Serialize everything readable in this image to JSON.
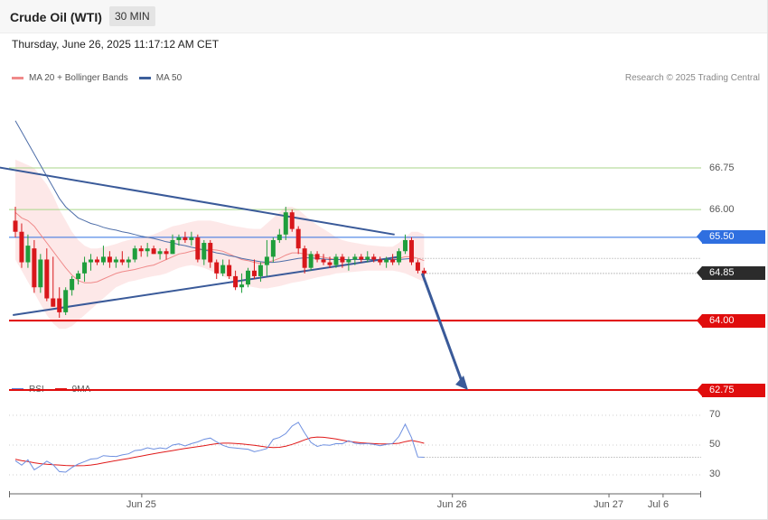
{
  "header": {
    "instrument": "Crude Oil (WTI)",
    "timeframe": "30 MIN"
  },
  "datetime": "Thursday, June 26, 2025 11:17:12 AM CET",
  "credit": "Research © 2025 Trading Central",
  "legend_main": [
    {
      "label": "MA 20 + Bollinger Bands",
      "color": "#f08a8a"
    },
    {
      "label": "MA 50",
      "color": "#3d5f9b"
    }
  ],
  "legend_rsi": [
    {
      "label": "RSI",
      "color": "#5b82d6"
    },
    {
      "label": "9MA",
      "color": "#e01919"
    }
  ],
  "colors": {
    "up": "#1f9e3c",
    "down": "#d8171b",
    "resistance": "#2f6fe0",
    "support": "#e00d0d",
    "trend": "#3a5a99",
    "last": "#2b2b2b",
    "green_level": "#a9d68a"
  },
  "chart_data": [
    {
      "type": "candlestick",
      "title": "Crude Oil (WTI)",
      "timeframe": "30 MIN",
      "x_ticks": [
        "Jun 25",
        "Jun 26",
        "Jun 27",
        "Jul 6"
      ],
      "ylim": [
        62.4,
        68.2
      ],
      "levels": [
        {
          "label": "66.75",
          "value": 66.75,
          "style": "green"
        },
        {
          "label": "66.00",
          "value": 66.0,
          "style": "green"
        },
        {
          "label": "65.50",
          "value": 65.5,
          "style": "resistance"
        },
        {
          "label": "64.85",
          "value": 64.85,
          "style": "last"
        },
        {
          "label": "64.00",
          "value": 64.0,
          "style": "support"
        },
        {
          "label": "62.75",
          "value": 62.75,
          "style": "support"
        }
      ],
      "ohlc": [
        [
          65.8,
          66.05,
          65.5,
          65.6
        ],
        [
          65.6,
          65.75,
          64.95,
          65.05
        ],
        [
          65.05,
          65.55,
          64.95,
          65.35
        ],
        [
          65.3,
          65.45,
          64.5,
          64.6
        ],
        [
          64.6,
          65.2,
          64.5,
          65.1
        ],
        [
          65.1,
          65.3,
          64.35,
          64.4
        ],
        [
          64.4,
          65.15,
          64.25,
          64.25
        ],
        [
          64.4,
          64.6,
          64.05,
          64.15
        ],
        [
          64.15,
          64.6,
          64.1,
          64.55
        ],
        [
          64.55,
          64.8,
          64.45,
          64.75
        ],
        [
          64.75,
          64.9,
          64.65,
          64.85
        ],
        [
          64.85,
          65.15,
          64.7,
          65.05
        ],
        [
          65.05,
          65.2,
          64.9,
          65.1
        ],
        [
          65.1,
          65.15,
          65.0,
          65.05
        ],
        [
          65.05,
          65.35,
          65.0,
          65.15
        ],
        [
          65.15,
          65.25,
          64.95,
          65.05
        ],
        [
          65.05,
          65.15,
          64.95,
          65.1
        ],
        [
          65.1,
          65.25,
          65.0,
          65.05
        ],
        [
          65.05,
          65.15,
          64.95,
          65.1
        ],
        [
          65.1,
          65.35,
          65.05,
          65.3
        ],
        [
          65.3,
          65.35,
          65.15,
          65.25
        ],
        [
          65.25,
          65.4,
          65.15,
          65.3
        ],
        [
          65.3,
          65.35,
          65.2,
          65.2
        ],
        [
          65.2,
          65.3,
          65.1,
          65.25
        ],
        [
          65.25,
          65.3,
          65.1,
          65.2
        ],
        [
          65.2,
          65.55,
          65.2,
          65.45
        ],
        [
          65.45,
          65.55,
          65.35,
          65.5
        ],
        [
          65.5,
          65.6,
          65.4,
          65.45
        ],
        [
          65.45,
          65.6,
          65.35,
          65.5
        ],
        [
          65.5,
          65.55,
          65.05,
          65.1
        ],
        [
          65.1,
          65.45,
          65.0,
          65.4
        ],
        [
          65.4,
          65.45,
          64.95,
          65.05
        ],
        [
          65.05,
          65.1,
          64.75,
          64.85
        ],
        [
          64.85,
          65.1,
          64.8,
          65.0
        ],
        [
          65.0,
          65.1,
          64.75,
          64.8
        ],
        [
          64.8,
          64.9,
          64.55,
          64.6
        ],
        [
          64.6,
          64.85,
          64.5,
          64.65
        ],
        [
          64.65,
          64.95,
          64.6,
          64.9
        ],
        [
          64.9,
          65.1,
          64.75,
          64.8
        ],
        [
          64.8,
          65.05,
          64.7,
          65.0
        ],
        [
          65.0,
          65.45,
          64.8,
          65.15
        ],
        [
          65.15,
          65.5,
          65.05,
          65.45
        ],
        [
          65.45,
          65.65,
          65.4,
          65.55
        ],
        [
          65.55,
          66.05,
          65.45,
          65.95
        ],
        [
          65.95,
          66.0,
          65.6,
          65.65
        ],
        [
          65.65,
          65.7,
          65.2,
          65.3
        ],
        [
          65.3,
          65.35,
          64.85,
          64.95
        ],
        [
          64.95,
          65.25,
          64.9,
          65.2
        ],
        [
          65.2,
          65.25,
          65.05,
          65.1
        ],
        [
          65.1,
          65.2,
          65.0,
          65.05
        ],
        [
          65.05,
          65.15,
          64.95,
          65.0
        ],
        [
          65.0,
          65.2,
          64.95,
          65.15
        ],
        [
          65.15,
          65.2,
          64.95,
          65.05
        ],
        [
          65.05,
          65.15,
          64.9,
          65.1
        ],
        [
          65.1,
          65.2,
          65.0,
          65.15
        ],
        [
          65.15,
          65.2,
          65.05,
          65.1
        ],
        [
          65.1,
          65.25,
          65.05,
          65.15
        ],
        [
          65.15,
          65.2,
          65.05,
          65.1
        ],
        [
          65.1,
          65.15,
          65.0,
          65.05
        ],
        [
          65.05,
          65.15,
          64.95,
          65.1
        ],
        [
          65.1,
          65.2,
          65.0,
          65.05
        ],
        [
          65.05,
          65.3,
          65.0,
          65.25
        ],
        [
          65.25,
          65.55,
          65.2,
          65.45
        ],
        [
          65.45,
          65.5,
          65.0,
          65.05
        ],
        [
          65.05,
          65.1,
          64.85,
          64.9
        ],
        [
          64.9,
          64.95,
          64.8,
          64.85
        ]
      ],
      "ma50": [
        67.6,
        67.4,
        67.2,
        67.0,
        66.8,
        66.6,
        66.4,
        66.2,
        66.05,
        65.95,
        65.85,
        65.8,
        65.75,
        65.72,
        65.68,
        65.65,
        65.63,
        65.6,
        65.58,
        65.55,
        65.52,
        65.5,
        65.48,
        65.45,
        65.42,
        65.4,
        65.37,
        65.35,
        65.32,
        65.3,
        65.27,
        65.25,
        65.22,
        65.2,
        65.17,
        65.15,
        65.12,
        65.1,
        65.08,
        65.06,
        65.05,
        65.05,
        65.06,
        65.08,
        65.1,
        65.12,
        65.13,
        65.13,
        65.12,
        65.11,
        65.1,
        65.1,
        65.1,
        65.1,
        65.1,
        65.1,
        65.1,
        65.1,
        65.1,
        65.1,
        65.1,
        65.1,
        65.11,
        65.12
      ],
      "ma20": [
        65.95,
        65.85,
        65.8,
        65.7,
        65.55,
        65.4,
        65.25,
        65.1,
        64.95,
        64.82,
        64.72,
        64.68,
        64.68,
        64.7,
        64.75,
        64.8,
        64.85,
        64.88,
        64.9,
        64.92,
        64.95,
        64.98,
        65.0,
        65.05,
        65.1,
        65.15,
        65.2,
        65.22,
        65.25,
        65.27,
        65.28,
        65.28,
        65.27,
        65.25,
        65.2,
        65.15,
        65.1,
        65.08,
        65.05,
        65.03,
        65.05,
        65.08,
        65.12,
        65.18,
        65.22,
        65.22,
        65.2,
        65.18,
        65.16,
        65.14,
        65.12,
        65.1,
        65.1,
        65.1,
        65.1,
        65.1,
        65.1,
        65.1,
        65.1,
        65.1,
        65.1,
        65.12,
        65.15,
        65.15,
        65.12,
        65.08
      ],
      "bb_upper": [
        66.9,
        66.85,
        66.8,
        66.75,
        66.6,
        66.45,
        66.25,
        66.0,
        65.8,
        65.6,
        65.45,
        65.35,
        65.3,
        65.3,
        65.32,
        65.35,
        65.38,
        65.42,
        65.45,
        65.48,
        65.5,
        65.52,
        65.55,
        65.6,
        65.65,
        65.7,
        65.72,
        65.75,
        65.78,
        65.8,
        65.8,
        65.8,
        65.78,
        65.75,
        65.72,
        65.7,
        65.68,
        65.66,
        65.65,
        65.65,
        65.75,
        65.85,
        65.95,
        66.05,
        66.05,
        66.0,
        65.9,
        65.8,
        65.72,
        65.65,
        65.58,
        65.5,
        65.45,
        65.42,
        65.4,
        65.38,
        65.36,
        65.35,
        65.34,
        65.33,
        65.33,
        65.4,
        65.5,
        65.6,
        65.6,
        65.55
      ],
      "bb_lower": [
        65.1,
        64.9,
        64.7,
        64.5,
        64.3,
        64.1,
        63.95,
        63.85,
        63.85,
        63.9,
        64.0,
        64.1,
        64.2,
        64.3,
        64.4,
        64.5,
        64.6,
        64.65,
        64.7,
        64.72,
        64.75,
        64.78,
        64.8,
        64.82,
        64.85,
        64.9,
        64.95,
        64.98,
        65.0,
        64.98,
        64.95,
        64.9,
        64.85,
        64.8,
        64.75,
        64.7,
        64.65,
        64.62,
        64.6,
        64.58,
        64.58,
        64.6,
        64.62,
        64.65,
        64.68,
        64.7,
        64.72,
        64.75,
        64.78,
        64.8,
        64.82,
        64.85,
        64.86,
        64.87,
        64.88,
        64.89,
        64.9,
        64.9,
        64.9,
        64.9,
        64.9,
        64.88,
        64.85,
        64.8,
        64.75,
        64.7
      ],
      "trendlines": [
        {
          "from": [
            -9.9,
            66.9
          ],
          "to": [
            60.3,
            65.55
          ]
        },
        {
          "from": [
            -0.4,
            64.1
          ],
          "to": [
            61.1,
            65.15
          ]
        }
      ],
      "projection": {
        "from": [
          64.7,
          64.85
        ],
        "to": [
          74,
          62.75
        ]
      }
    },
    {
      "type": "line",
      "title": "RSI",
      "ylim": [
        20,
        80
      ],
      "y_ticks": [
        70,
        50,
        30
      ],
      "series": [
        {
          "name": "RSI",
          "values": [
            39.5,
            36.5,
            40.1,
            33.4,
            36.0,
            39.2,
            36.8,
            32.2,
            31.8,
            35.0,
            37.3,
            38.9,
            40.6,
            41.0,
            42.9,
            42.5,
            42.3,
            43.4,
            44.1,
            46.3,
            46.7,
            48.2,
            47.3,
            48.1,
            47.5,
            50.0,
            50.8,
            49.4,
            51.0,
            52.1,
            53.9,
            54.7,
            52.1,
            49.8,
            48.4,
            48.0,
            47.6,
            47.2,
            45.5,
            46.5,
            47.7,
            53.9,
            55.1,
            57.7,
            62.7,
            65.3,
            58.1,
            51.8,
            49.1,
            50.2,
            49.9,
            51.0,
            50.9,
            52.9,
            51.2,
            50.7,
            51.0,
            50.4,
            49.6,
            50.5,
            51.1,
            55.8,
            64.0,
            55.0,
            42.0,
            41.8
          ]
        },
        {
          "name": "9MA",
          "values": [
            40.5,
            39.6,
            38.9,
            38.1,
            37.5,
            37.1,
            36.8,
            36.6,
            36.3,
            36.1,
            36.1,
            36.2,
            36.6,
            37.2,
            38.0,
            38.8,
            39.6,
            40.3,
            41.0,
            41.8,
            42.6,
            43.4,
            44.2,
            44.9,
            45.6,
            46.3,
            47.0,
            47.7,
            48.3,
            48.9,
            49.6,
            50.3,
            50.9,
            51.3,
            51.3,
            51.1,
            50.8,
            50.3,
            49.8,
            49.2,
            48.6,
            48.3,
            48.5,
            49.3,
            50.4,
            51.9,
            53.5,
            54.9,
            55.4,
            55.2,
            54.7,
            54.1,
            53.3,
            52.5,
            52.0,
            51.5,
            51.2,
            51.0,
            50.8,
            50.8,
            50.9,
            51.2,
            52.3,
            53.1,
            52.3,
            51.2
          ]
        }
      ]
    }
  ]
}
